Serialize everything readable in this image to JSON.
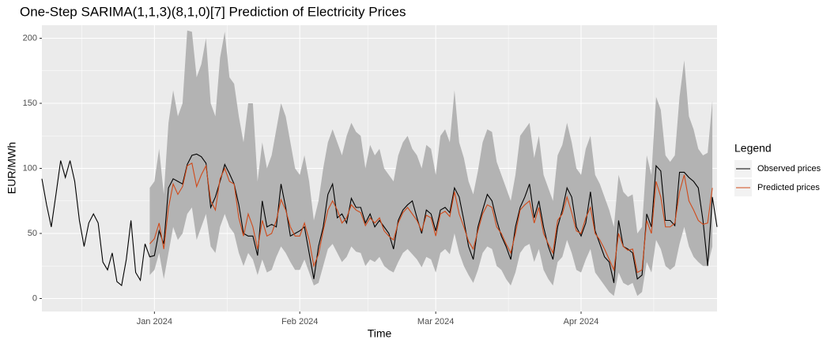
{
  "chart_data": {
    "type": "line",
    "title": "One-Step SARIMA(1,1,3)(8,1,0)[7] Prediction of Electricity Prices",
    "x_label": "Time",
    "y_label": "EUR/MWh",
    "legend_title": "Legend",
    "legend_position": "right",
    "x": [
      0,
      1,
      2,
      3,
      4,
      5,
      6,
      7,
      8,
      9,
      10,
      11,
      12,
      13,
      14,
      15,
      16,
      17,
      18,
      19,
      20,
      21,
      22,
      23,
      24,
      25,
      26,
      27,
      28,
      29,
      30,
      31,
      32,
      33,
      34,
      35,
      36,
      37,
      38,
      39,
      40,
      41,
      42,
      43,
      44,
      45,
      46,
      47,
      48,
      49,
      50,
      51,
      52,
      53,
      54,
      55,
      56,
      57,
      58,
      59,
      60,
      61,
      62,
      63,
      64,
      65,
      66,
      67,
      68,
      69,
      70,
      71,
      72,
      73,
      74,
      75,
      76,
      77,
      78,
      79,
      80,
      81,
      82,
      83,
      84,
      85,
      86,
      87,
      88,
      89,
      90,
      91,
      92,
      93,
      94,
      95,
      96,
      97,
      98,
      99,
      100,
      101,
      102,
      103,
      104,
      105,
      106,
      107,
      108,
      109,
      110,
      111,
      112,
      113,
      114,
      115,
      116,
      117,
      118,
      119,
      120,
      121,
      122,
      123,
      124,
      125,
      126,
      127,
      128,
      129,
      130,
      131,
      132,
      133,
      134,
      135,
      136,
      137,
      138,
      139,
      140,
      141,
      142,
      143,
      144
    ],
    "xlim": [
      0,
      144
    ],
    "xticks": [
      {
        "value": 24,
        "label": "Jan 2024"
      },
      {
        "value": 55,
        "label": "Feb 2024"
      },
      {
        "value": 84,
        "label": "Mar 2024"
      },
      {
        "value": 115,
        "label": "Apr 2024"
      }
    ],
    "ylim": [
      -10,
      210
    ],
    "yticks": [
      0,
      50,
      100,
      150,
      200
    ],
    "grid": true,
    "band": {
      "color": "#b3b3b3",
      "upper": [
        null,
        null,
        null,
        null,
        null,
        null,
        null,
        null,
        null,
        null,
        null,
        null,
        null,
        null,
        null,
        null,
        null,
        null,
        null,
        null,
        null,
        null,
        null,
        85,
        90,
        115,
        80,
        135,
        160,
        140,
        150,
        206,
        205,
        170,
        180,
        200,
        150,
        140,
        185,
        205,
        170,
        165,
        140,
        120,
        150,
        150,
        90,
        120,
        100,
        110,
        130,
        150,
        140,
        120,
        100,
        95,
        110,
        90,
        60,
        75,
        100,
        120,
        130,
        120,
        110,
        125,
        135,
        128,
        125,
        100,
        118,
        110,
        115,
        100,
        95,
        90,
        110,
        120,
        125,
        115,
        110,
        100,
        118,
        115,
        95,
        125,
        130,
        120,
        160,
        120,
        108,
        90,
        80,
        98,
        120,
        130,
        128,
        105,
        95,
        85,
        75,
        95,
        125,
        130,
        135,
        108,
        125,
        95,
        85,
        75,
        110,
        118,
        135,
        120,
        100,
        95,
        115,
        125,
        95,
        88,
        78,
        68,
        55,
        95,
        82,
        78,
        80,
        50,
        55,
        110,
        95,
        155,
        145,
        110,
        105,
        110,
        155,
        183,
        140,
        130,
        115,
        110,
        112,
        152,
        null
      ],
      "lower": [
        null,
        null,
        null,
        null,
        null,
        null,
        null,
        null,
        null,
        null,
        null,
        null,
        null,
        null,
        null,
        null,
        null,
        null,
        null,
        null,
        null,
        null,
        null,
        18,
        22,
        35,
        15,
        35,
        55,
        45,
        50,
        65,
        70,
        45,
        55,
        65,
        40,
        35,
        55,
        65,
        55,
        50,
        35,
        25,
        35,
        30,
        18,
        30,
        20,
        22,
        32,
        40,
        35,
        28,
        22,
        22,
        30,
        20,
        10,
        12,
        25,
        38,
        42,
        35,
        28,
        32,
        40,
        36,
        35,
        25,
        30,
        28,
        32,
        25,
        22,
        20,
        28,
        35,
        38,
        34,
        30,
        24,
        32,
        30,
        20,
        35,
        38,
        34,
        50,
        35,
        25,
        18,
        12,
        22,
        35,
        40,
        38,
        25,
        22,
        15,
        10,
        20,
        35,
        40,
        42,
        28,
        38,
        22,
        15,
        10,
        28,
        32,
        45,
        35,
        22,
        20,
        30,
        38,
        20,
        15,
        10,
        5,
        2,
        20,
        12,
        10,
        12,
        2,
        5,
        28,
        20,
        45,
        38,
        25,
        22,
        25,
        42,
        55,
        40,
        32,
        28,
        25,
        25,
        40,
        null
      ]
    },
    "series": [
      {
        "name": "Observed prices",
        "color": "#000000",
        "values": [
          92,
          72,
          55,
          80,
          106,
          93,
          106,
          90,
          60,
          40,
          58,
          65,
          58,
          28,
          22,
          35,
          13,
          10,
          30,
          60,
          20,
          14,
          42,
          32,
          33,
          52,
          42,
          85,
          92,
          90,
          88,
          103,
          110,
          111,
          109,
          104,
          70,
          78,
          90,
          103,
          96,
          88,
          72,
          50,
          48,
          48,
          33,
          75,
          55,
          57,
          55,
          88,
          70,
          48,
          50,
          52,
          55,
          35,
          15,
          40,
          55,
          80,
          88,
          62,
          65,
          58,
          77,
          70,
          70,
          58,
          65,
          55,
          60,
          55,
          50,
          38,
          60,
          68,
          72,
          75,
          62,
          50,
          68,
          65,
          52,
          68,
          70,
          66,
          85,
          78,
          60,
          40,
          30,
          55,
          68,
          80,
          75,
          60,
          48,
          40,
          30,
          55,
          70,
          78,
          88,
          62,
          75,
          55,
          40,
          30,
          55,
          68,
          85,
          78,
          55,
          48,
          58,
          82,
          52,
          42,
          32,
          28,
          12,
          60,
          40,
          38,
          35,
          15,
          18,
          65,
          55,
          102,
          98,
          60,
          60,
          56,
          97,
          97,
          93,
          90,
          85,
          60,
          25,
          78,
          55
        ]
      },
      {
        "name": "Predicted prices",
        "color": "#d04a1a",
        "values": [
          null,
          null,
          null,
          null,
          null,
          null,
          null,
          null,
          null,
          null,
          null,
          null,
          null,
          null,
          null,
          null,
          null,
          null,
          null,
          null,
          null,
          null,
          null,
          42,
          46,
          58,
          38,
          70,
          88,
          80,
          86,
          102,
          104,
          86,
          95,
          102,
          75,
          68,
          92,
          100,
          90,
          88,
          62,
          48,
          65,
          55,
          38,
          60,
          48,
          50,
          60,
          76,
          68,
          55,
          48,
          48,
          58,
          45,
          25,
          34,
          52,
          68,
          75,
          68,
          58,
          62,
          72,
          68,
          66,
          56,
          62,
          58,
          62,
          52,
          48,
          45,
          58,
          66,
          70,
          65,
          60,
          52,
          64,
          62,
          48,
          65,
          67,
          63,
          82,
          65,
          55,
          44,
          38,
          52,
          65,
          72,
          70,
          55,
          50,
          42,
          35,
          50,
          68,
          72,
          75,
          58,
          70,
          50,
          42,
          35,
          60,
          65,
          78,
          66,
          52,
          50,
          62,
          70,
          50,
          45,
          38,
          30,
          22,
          50,
          40,
          37,
          38,
          20,
          22,
          60,
          50,
          90,
          78,
          55,
          55,
          58,
          82,
          95,
          75,
          68,
          60,
          57,
          58,
          85,
          null
        ]
      }
    ]
  }
}
